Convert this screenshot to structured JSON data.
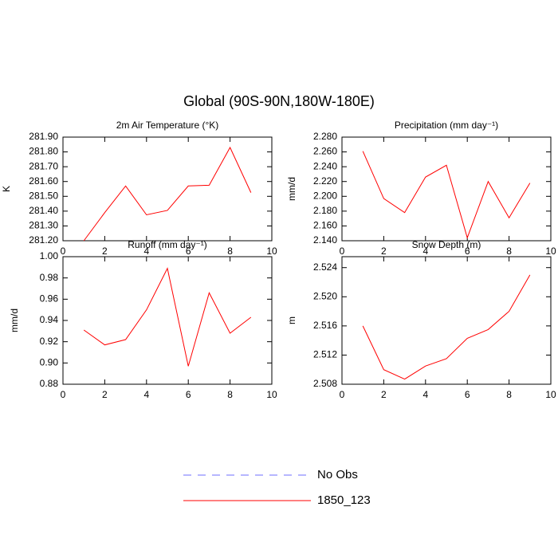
{
  "title": "Global (90S-90N,180W-180E)",
  "legend": [
    {
      "name": "No Obs",
      "color": "#6e6eff",
      "dashed": true
    },
    {
      "name": "1850_123",
      "color": "#ff0000",
      "dashed": false
    }
  ],
  "chart_data": [
    {
      "type": "line",
      "title": "2m Air Temperature (°K)",
      "y_label": "K",
      "x": [
        1,
        2,
        3,
        4,
        5,
        6,
        7,
        8,
        9
      ],
      "series": [
        {
          "color": "#ff0000",
          "values": [
            281.2,
            281.39,
            281.57,
            281.375,
            281.405,
            281.57,
            281.575,
            281.83,
            281.525
          ]
        }
      ],
      "xlim": [
        0,
        10
      ],
      "xticks": [
        0,
        2,
        4,
        6,
        8,
        10
      ],
      "ylim": [
        281.2,
        281.9
      ],
      "yticks": [
        {
          "value": 281.2,
          "label": "281.20"
        },
        {
          "value": 281.3,
          "label": "281.30"
        },
        {
          "value": 281.4,
          "label": "281.40"
        },
        {
          "value": 281.5,
          "label": "281.50"
        },
        {
          "value": 281.6,
          "label": "281.60"
        },
        {
          "value": 281.7,
          "label": "281.70"
        },
        {
          "value": 281.8,
          "label": "281.80"
        },
        {
          "value": 281.9,
          "label": "281.90"
        }
      ]
    },
    {
      "type": "line",
      "title": "Precipitation (mm day⁻¹)",
      "y_label": "mm/d",
      "x": [
        1,
        2,
        3,
        4,
        5,
        6,
        7,
        8,
        9
      ],
      "series": [
        {
          "color": "#ff0000",
          "values": [
            2.261,
            2.197,
            2.178,
            2.226,
            2.242,
            2.144,
            2.22,
            2.171,
            2.218
          ]
        }
      ],
      "xlim": [
        0,
        10
      ],
      "xticks": [
        0,
        2,
        4,
        6,
        8,
        10
      ],
      "ylim": [
        2.14,
        2.28
      ],
      "yticks": [
        {
          "value": 2.14,
          "label": "2.140"
        },
        {
          "value": 2.16,
          "label": "2.160"
        },
        {
          "value": 2.18,
          "label": "2.180"
        },
        {
          "value": 2.2,
          "label": "2.200"
        },
        {
          "value": 2.22,
          "label": "2.220"
        },
        {
          "value": 2.24,
          "label": "2.240"
        },
        {
          "value": 2.26,
          "label": "2.260"
        },
        {
          "value": 2.28,
          "label": "2.280"
        }
      ]
    },
    {
      "type": "line",
      "title": "Runoff (mm day⁻¹)",
      "y_label": "mm/d",
      "x": [
        1,
        2,
        3,
        4,
        5,
        6,
        7,
        8,
        9
      ],
      "series": [
        {
          "color": "#ff0000",
          "values": [
            0.931,
            0.917,
            0.922,
            0.95,
            0.989,
            0.897,
            0.966,
            0.928,
            0.943
          ]
        }
      ],
      "xlim": [
        0,
        10
      ],
      "xticks": [
        0,
        2,
        4,
        6,
        8,
        10
      ],
      "ylim": [
        0.88,
        1.0
      ],
      "yticks": [
        {
          "value": 0.88,
          "label": "0.88"
        },
        {
          "value": 0.9,
          "label": "0.90"
        },
        {
          "value": 0.92,
          "label": "0.92"
        },
        {
          "value": 0.94,
          "label": "0.94"
        },
        {
          "value": 0.96,
          "label": "0.96"
        },
        {
          "value": 0.98,
          "label": "0.98"
        },
        {
          "value": 1.0,
          "label": "1.00"
        }
      ]
    },
    {
      "type": "line",
      "title": "Snow Depth (m)",
      "y_label": "m",
      "x": [
        1,
        2,
        3,
        4,
        5,
        6,
        7,
        8,
        9
      ],
      "series": [
        {
          "color": "#ff0000",
          "values": [
            2.516,
            2.51,
            2.5087,
            2.5105,
            2.5115,
            2.5143,
            2.5155,
            2.518,
            2.523
          ]
        }
      ],
      "xlim": [
        0,
        10
      ],
      "xticks": [
        0,
        2,
        4,
        6,
        8,
        10
      ],
      "ylim": [
        2.508,
        2.5255
      ],
      "yticks": [
        {
          "value": 2.508,
          "label": "2.508"
        },
        {
          "value": 2.512,
          "label": "2.512"
        },
        {
          "value": 2.516,
          "label": "2.516"
        },
        {
          "value": 2.52,
          "label": "2.520"
        },
        {
          "value": 2.524,
          "label": "2.524"
        }
      ]
    }
  ]
}
